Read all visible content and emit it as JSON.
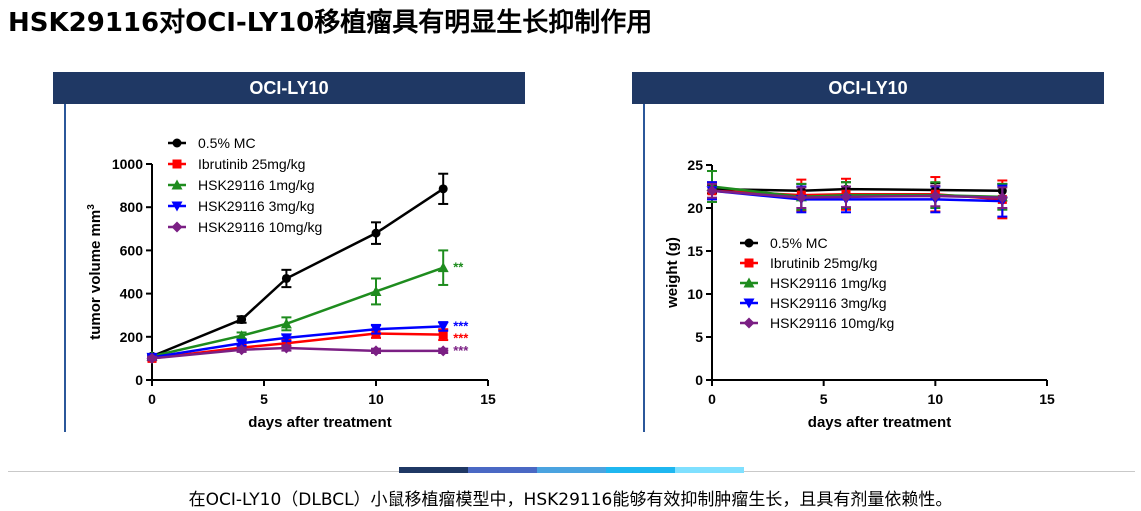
{
  "page_title": "HSK29116对OCI-LY10移植瘤具有明显生长抑制作用",
  "caption": "在OCI-LY10（DLBCL）小鼠移植瘤模型中，HSK29116能够有效抑制肿瘤生长，且具有剂量依赖性。",
  "colors": {
    "header_bg": "#1f3864",
    "footer_segments": [
      "#1f3864",
      "#4a68c4",
      "#4aa3e0",
      "#1fb7f0",
      "#7fe0ff"
    ],
    "series": [
      "#000000",
      "#ff0000",
      "#1e8c1e",
      "#0000ff",
      "#7b1f84"
    ]
  },
  "chart_data": [
    {
      "type": "line",
      "panel_title": "OCI-LY10",
      "xlabel": "days after treatment",
      "ylabel": "tumor volume mm",
      "ylabel_superscript": "3",
      "xlim": [
        0,
        15
      ],
      "ylim": [
        0,
        1000
      ],
      "xticks": [
        0,
        5,
        10,
        15
      ],
      "yticks": [
        0,
        200,
        400,
        600,
        800,
        1000
      ],
      "legend_position": "top-left",
      "x": [
        0,
        4,
        6,
        10,
        13
      ],
      "series": [
        {
          "name": "0.5% MC",
          "marker": "circle",
          "values": [
            110,
            280,
            470,
            680,
            885
          ],
          "errors": [
            10,
            15,
            40,
            50,
            70
          ],
          "annotation": ""
        },
        {
          "name": "Ibrutinib 25mg/kg",
          "marker": "square",
          "values": [
            100,
            150,
            170,
            215,
            210
          ],
          "errors": [
            8,
            12,
            15,
            20,
            25
          ],
          "annotation": "***"
        },
        {
          "name": "HSK29116 1mg/kg",
          "marker": "triangle-up",
          "values": [
            110,
            205,
            260,
            410,
            520
          ],
          "errors": [
            8,
            15,
            30,
            60,
            80
          ],
          "annotation": "**"
        },
        {
          "name": "HSK29116 3mg/kg",
          "marker": "triangle-down",
          "values": [
            105,
            170,
            195,
            235,
            248
          ],
          "errors": [
            8,
            12,
            15,
            20,
            20
          ],
          "annotation": "***"
        },
        {
          "name": "HSK29116 10mg/kg",
          "marker": "diamond",
          "values": [
            100,
            140,
            148,
            135,
            135
          ],
          "errors": [
            8,
            10,
            12,
            10,
            10
          ],
          "annotation": "***"
        }
      ]
    },
    {
      "type": "line",
      "panel_title": "OCI-LY10",
      "xlabel": "days after treatment",
      "ylabel": "weight (g)",
      "xlim": [
        0,
        15
      ],
      "ylim": [
        0,
        25
      ],
      "xticks": [
        0,
        5,
        10,
        15
      ],
      "yticks": [
        0,
        5,
        10,
        15,
        20,
        25
      ],
      "legend_position": "center-left",
      "x": [
        0,
        4,
        6,
        10,
        13
      ],
      "series": [
        {
          "name": "0.5% MC",
          "marker": "circle",
          "values": [
            22.2,
            22.0,
            22.2,
            22.1,
            22.0
          ],
          "errors": [
            0.5,
            0.8,
            0.8,
            0.8,
            0.8
          ]
        },
        {
          "name": "Ibrutinib 25mg/kg",
          "marker": "square",
          "values": [
            22.0,
            21.5,
            21.6,
            21.6,
            21.0
          ],
          "errors": [
            1.0,
            1.8,
            1.8,
            2.0,
            2.2
          ]
        },
        {
          "name": "HSK29116 1mg/kg",
          "marker": "triangle-up",
          "values": [
            22.5,
            21.3,
            21.5,
            21.5,
            21.3
          ],
          "errors": [
            1.8,
            1.5,
            1.5,
            1.5,
            1.5
          ]
        },
        {
          "name": "HSK29116 3mg/kg",
          "marker": "triangle-down",
          "values": [
            22.0,
            21.0,
            21.0,
            21.0,
            20.8
          ],
          "errors": [
            1.0,
            1.5,
            1.5,
            1.5,
            1.8
          ]
        },
        {
          "name": "HSK29116 10mg/kg",
          "marker": "diamond",
          "values": [
            22.0,
            21.2,
            21.3,
            21.4,
            21.2
          ],
          "errors": [
            0.8,
            1.2,
            1.2,
            1.2,
            1.2
          ]
        }
      ]
    }
  ]
}
